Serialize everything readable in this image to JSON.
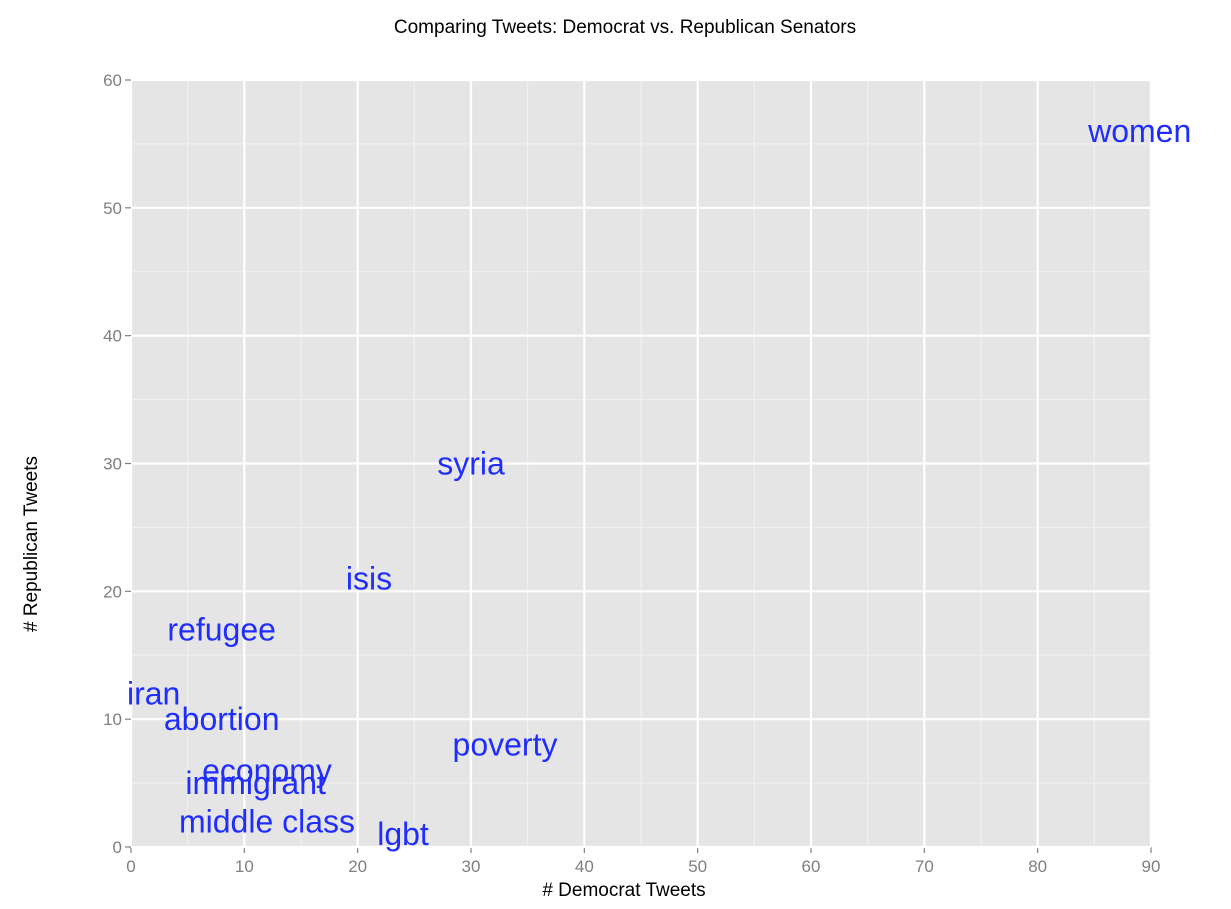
{
  "chart_data": {
    "type": "scatter",
    "title": "Comparing Tweets: Democrat vs. Republican Senators",
    "xlabel": "# Democrat Tweets",
    "ylabel": "# Republican Tweets",
    "xlim": [
      0,
      90
    ],
    "ylim": [
      0,
      60
    ],
    "xticks": [
      "0",
      "10",
      "20",
      "30",
      "40",
      "50",
      "60",
      "70",
      "80",
      "90"
    ],
    "yticks": [
      "0",
      "10",
      "20",
      "30",
      "40",
      "50",
      "60"
    ],
    "grid": true,
    "marker": "text labels",
    "label_color": "#1f2dff",
    "panel_color": "#e5e5e5",
    "points": [
      {
        "label": "women",
        "x": 89,
        "y": 56
      },
      {
        "label": "syria",
        "x": 30,
        "y": 30
      },
      {
        "label": "isis",
        "x": 21,
        "y": 21
      },
      {
        "label": "refugee",
        "x": 8,
        "y": 17
      },
      {
        "label": "iran",
        "x": 2,
        "y": 12
      },
      {
        "label": "abortion",
        "x": 8,
        "y": 10
      },
      {
        "label": "poverty",
        "x": 33,
        "y": 8
      },
      {
        "label": "economy",
        "x": 12,
        "y": 6
      },
      {
        "label": "immigrant",
        "x": 11,
        "y": 5
      },
      {
        "label": "middle class",
        "x": 12,
        "y": 2
      },
      {
        "label": "lgbt",
        "x": 24,
        "y": 1
      }
    ]
  }
}
